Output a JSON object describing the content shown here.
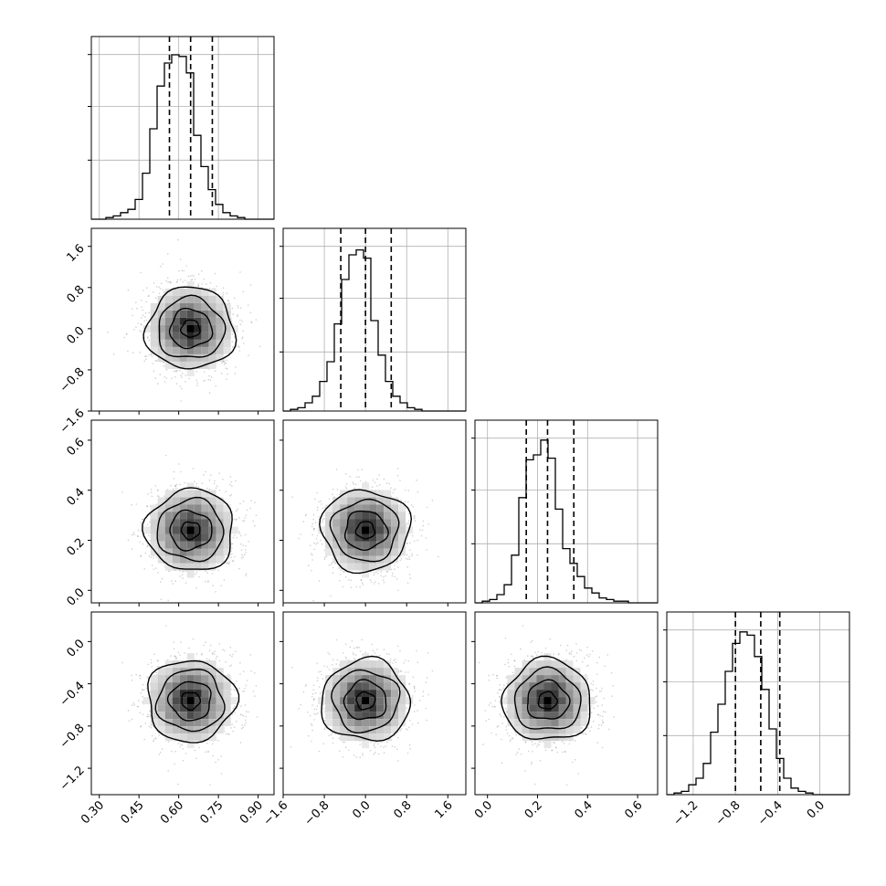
{
  "chart_data": {
    "type": "corner",
    "title": "",
    "parameters": 4,
    "grid": true,
    "histogram_bins": 25,
    "quantile_lines": [
      0.16,
      0.5,
      0.84
    ],
    "axes": [
      {
        "range": [
          0.27,
          0.96
        ],
        "ticks": [
          0.3,
          0.45,
          0.6,
          0.75,
          0.9
        ],
        "tick_labels": [
          "0.30",
          "0.45",
          "0.60",
          "0.75",
          "0.90"
        ]
      },
      {
        "range": [
          -1.6,
          1.95
        ],
        "ticks": [
          -1.6,
          -0.8,
          0.0,
          0.8,
          1.6
        ],
        "tick_labels": [
          "−1.6",
          "−0.8",
          "0.0",
          "0.8",
          "1.6"
        ]
      },
      {
        "range": [
          -0.05,
          0.68
        ],
        "ticks": [
          0.0,
          0.2,
          0.4,
          0.6
        ],
        "tick_labels": [
          "0.0",
          "0.2",
          "0.4",
          "0.6"
        ]
      },
      {
        "range": [
          -1.45,
          0.28
        ],
        "ticks": [
          -1.2,
          -0.8,
          -0.4,
          0.0
        ],
        "tick_labels": [
          "−1.2",
          "−0.8",
          "−0.4",
          "0.0"
        ]
      }
    ],
    "marginals": [
      {
        "param": 0,
        "q16": 0.565,
        "median": 0.645,
        "q84": 0.727,
        "counts": [
          0.0,
          0.0,
          0.01,
          0.02,
          0.04,
          0.06,
          0.12,
          0.28,
          0.55,
          0.81,
          0.95,
          1.0,
          0.99,
          0.89,
          0.51,
          0.32,
          0.18,
          0.09,
          0.04,
          0.02,
          0.01,
          0.0,
          0.0,
          0.0,
          0.0
        ]
      },
      {
        "param": 1,
        "q16": -0.48,
        "median": 0.0,
        "q84": 0.5,
        "counts": [
          0.0,
          0.01,
          0.02,
          0.05,
          0.09,
          0.18,
          0.3,
          0.53,
          0.8,
          0.95,
          0.98,
          0.93,
          0.55,
          0.34,
          0.18,
          0.09,
          0.05,
          0.02,
          0.01,
          0.0,
          0.0,
          0.0,
          0.0,
          0.0,
          0.0
        ]
      },
      {
        "param": 2,
        "q16": 0.155,
        "median": 0.24,
        "q84": 0.345,
        "counts": [
          0.0,
          0.01,
          0.02,
          0.05,
          0.11,
          0.29,
          0.64,
          0.87,
          0.9,
          0.99,
          0.88,
          0.57,
          0.33,
          0.24,
          0.16,
          0.09,
          0.06,
          0.03,
          0.02,
          0.01,
          0.01,
          0.0,
          0.0,
          0.0,
          0.0
        ]
      },
      {
        "param": 3,
        "q16": -0.8,
        "median": -0.56,
        "q84": -0.38,
        "counts": [
          0.0,
          0.01,
          0.02,
          0.06,
          0.1,
          0.19,
          0.38,
          0.55,
          0.75,
          0.92,
          0.99,
          0.97,
          0.84,
          0.64,
          0.4,
          0.22,
          0.1,
          0.04,
          0.02,
          0.01,
          0.0,
          0.0,
          0.0,
          0.0,
          0.0
        ]
      }
    ],
    "joint_panels": [
      {
        "x": 0,
        "y": 1,
        "center": [
          0.645,
          0.0
        ],
        "contour_levels": 4
      },
      {
        "x": 0,
        "y": 2,
        "center": [
          0.645,
          0.24
        ],
        "contour_levels": 4
      },
      {
        "x": 1,
        "y": 2,
        "center": [
          0.0,
          0.24
        ],
        "contour_levels": 4
      },
      {
        "x": 0,
        "y": 3,
        "center": [
          0.645,
          -0.56
        ],
        "contour_levels": 4
      },
      {
        "x": 1,
        "y": 3,
        "center": [
          0.0,
          -0.56
        ],
        "contour_levels": 4
      },
      {
        "x": 2,
        "y": 3,
        "center": [
          0.24,
          -0.56
        ],
        "contour_levels": 4
      }
    ]
  }
}
